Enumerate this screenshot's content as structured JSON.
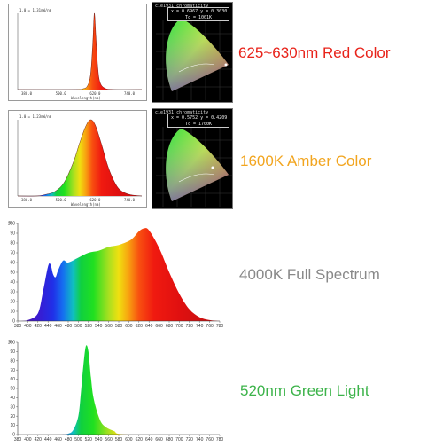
{
  "colors": {
    "red_caption": "#e8231a",
    "amber_caption": "#f2a51f",
    "gray_caption": "#888888",
    "green_caption": "#3cb34a"
  },
  "captions": {
    "red": "625~630nm Red Color",
    "amber": "1600K Amber Color",
    "full": "4000K Full Spectrum",
    "green": "520nm Green Light"
  },
  "cie_panels": {
    "red": {
      "title": "cie1931 chromaticity",
      "xy": "x = 0.6967  y = 0.3030",
      "tc": "Tc = 1001K"
    },
    "amber": {
      "title": "cie1931 chromaticity",
      "xy": "x = 0.5752  y = 0.4209",
      "tc": "Tc = 1700K"
    }
  },
  "chart_data": [
    {
      "type": "area",
      "title": "",
      "peak_label": "1.0 = 1.31mW/nm",
      "xlabel": "Wavelength(nm)",
      "ticks": [
        "380.0",
        "500.0",
        "620.0",
        "740.0"
      ],
      "xlim": [
        380,
        780
      ],
      "ylim": [
        0,
        1
      ],
      "x": [
        380,
        560,
        590,
        605,
        615,
        622,
        627,
        632,
        638,
        645,
        660,
        690,
        780
      ],
      "y": [
        0,
        0,
        0.01,
        0.05,
        0.2,
        0.6,
        1.0,
        0.7,
        0.3,
        0.1,
        0.02,
        0,
        0
      ]
    },
    {
      "type": "area",
      "title": "",
      "peak_label": "1.0 = 1.23mW/nm",
      "xlabel": "Wavelength(nm)",
      "ticks": [
        "380.0",
        "500.0",
        "620.0",
        "740.0"
      ],
      "xlim": [
        380,
        780
      ],
      "ylim": [
        0,
        1
      ],
      "x": [
        380,
        440,
        470,
        500,
        530,
        560,
        580,
        600,
        615,
        630,
        650,
        670,
        690,
        710,
        740,
        780
      ],
      "y": [
        0,
        0,
        0.02,
        0.06,
        0.18,
        0.45,
        0.7,
        0.92,
        1.0,
        0.93,
        0.68,
        0.4,
        0.2,
        0.08,
        0.02,
        0
      ]
    },
    {
      "type": "area",
      "title": "",
      "ylabel": "%",
      "xlim": [
        380,
        780
      ],
      "ylim": [
        0,
        100
      ],
      "xticks": [
        380,
        400,
        420,
        440,
        460,
        480,
        500,
        520,
        540,
        560,
        580,
        600,
        620,
        640,
        660,
        680,
        700,
        720,
        740,
        760,
        780
      ],
      "yticks": [
        0,
        10,
        20,
        30,
        40,
        50,
        60,
        70,
        80,
        90,
        100
      ],
      "x": [
        380,
        400,
        420,
        430,
        440,
        445,
        450,
        455,
        460,
        470,
        480,
        500,
        520,
        540,
        560,
        580,
        600,
        610,
        620,
        630,
        640,
        660,
        680,
        700,
        720,
        740,
        760,
        780
      ],
      "y": [
        0,
        1,
        8,
        30,
        56,
        58,
        48,
        45,
        52,
        62,
        60,
        65,
        70,
        72,
        76,
        78,
        82,
        86,
        92,
        95,
        93,
        75,
        50,
        28,
        12,
        4,
        1,
        0
      ]
    },
    {
      "type": "area",
      "title": "",
      "ylabel": "%",
      "xlim": [
        380,
        780
      ],
      "ylim": [
        0,
        100
      ],
      "xticks": [
        380,
        400,
        420,
        440,
        460,
        480,
        500,
        520,
        540,
        560,
        580,
        600,
        620,
        640,
        660,
        680,
        700,
        720,
        740,
        760,
        780
      ],
      "yticks": [
        0,
        10,
        20,
        30,
        40,
        50,
        60,
        70,
        80,
        90,
        100
      ],
      "x": [
        380,
        460,
        480,
        490,
        500,
        505,
        510,
        515,
        520,
        525,
        530,
        540,
        550,
        570,
        600,
        780
      ],
      "y": [
        0,
        0,
        1,
        5,
        20,
        45,
        75,
        96,
        90,
        62,
        40,
        20,
        10,
        4,
        0,
        0
      ]
    }
  ]
}
